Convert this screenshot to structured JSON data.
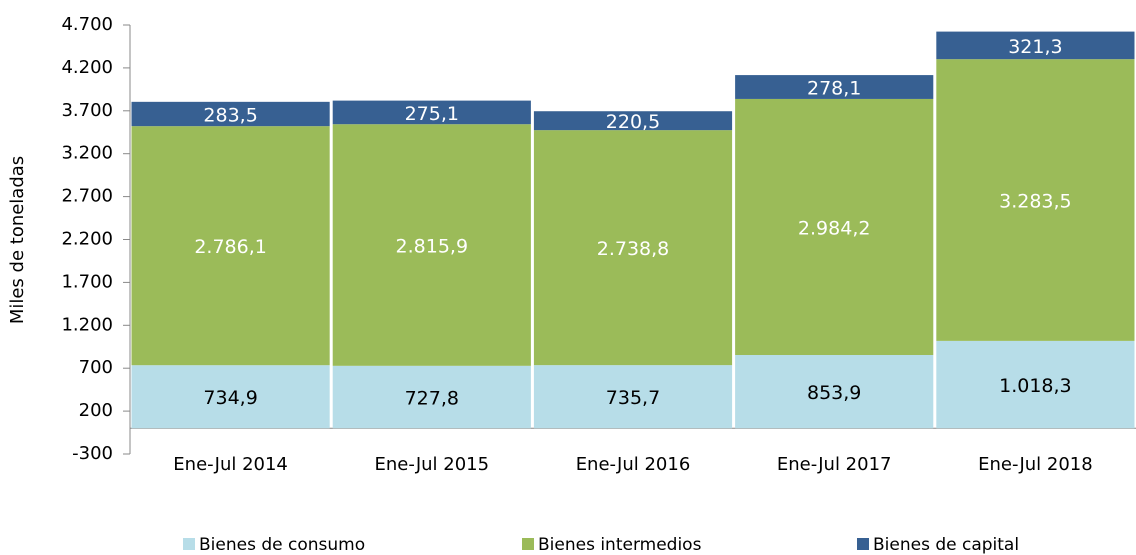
{
  "chart_data": {
    "type": "stacked_bar",
    "y_label": "Miles de toneladas",
    "categories": [
      "Ene-Jul 2014",
      "Ene-Jul 2015",
      "Ene-Jul 2016",
      "Ene-Jul 2017",
      "Ene-Jul 2018"
    ],
    "series": [
      {
        "name": "Bienes de consumo",
        "color": "#b7dde8",
        "values": [
          734.9,
          727.8,
          735.7,
          853.9,
          1018.3
        ],
        "value_labels": [
          "734,9",
          "727,8",
          "735,7",
          "853,9",
          "1.018,3"
        ]
      },
      {
        "name": "Bienes intermedios",
        "color": "#9bbb59",
        "values": [
          2786.1,
          2815.9,
          2738.8,
          2984.2,
          3283.5
        ],
        "value_labels": [
          "2.786,1",
          "2.815,9",
          "2.738,8",
          "2.984,2",
          "3.283,5"
        ]
      },
      {
        "name": "Bienes de capital",
        "color": "#376092",
        "values": [
          283.5,
          275.1,
          220.5,
          278.1,
          321.3
        ],
        "value_labels": [
          "283,5",
          "275,1",
          "220,5",
          "278,1",
          "321,3"
        ]
      }
    ],
    "ylim": [
      -300,
      4700
    ],
    "yticks": [
      -300,
      200,
      700,
      {
        "value": 1200,
        "label": "1.200"
      },
      {
        "value": 1700,
        "label": "1.700"
      },
      {
        "value": 2200,
        "label": "2.200"
      },
      {
        "value": 2700,
        "label": "2.700"
      },
      {
        "value": 3200,
        "label": "3.200"
      },
      {
        "value": 3700,
        "label": "3.700"
      },
      {
        "value": 4200,
        "label": "4.200"
      },
      {
        "value": 4700,
        "label": "4.700"
      }
    ],
    "legend": "bottom"
  }
}
